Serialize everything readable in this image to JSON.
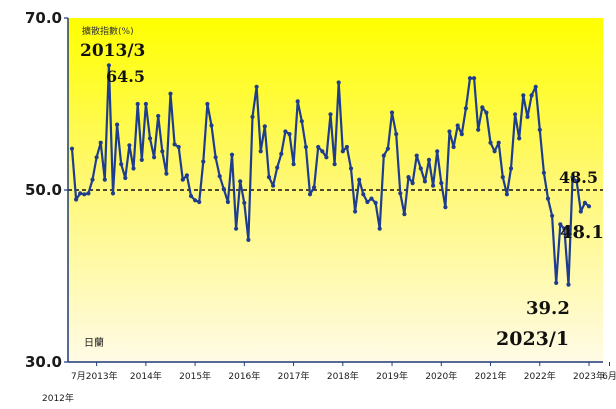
{
  "chart_data": {
    "type": "line",
    "title": "",
    "legend_label": "擴散指數(%)",
    "ylim": [
      30,
      70
    ],
    "yticks": [
      "70.0",
      "50.0",
      "30.0"
    ],
    "reference_line": {
      "value": 50,
      "style": "dashed"
    },
    "x_start": "2012-07",
    "xticks": [
      {
        "label": "7月2013年",
        "date": "2013-01"
      },
      {
        "label": "2014年",
        "date": "2014-01"
      },
      {
        "label": "2015年",
        "date": "2015-01"
      },
      {
        "label": "2016年",
        "date": "2016-01"
      },
      {
        "label": "2017年",
        "date": "2017-01"
      },
      {
        "label": "2018年",
        "date": "2018-01"
      },
      {
        "label": "2019年",
        "date": "2019-01"
      },
      {
        "label": "2020年",
        "date": "2020-01"
      },
      {
        "label": "2021年",
        "date": "2021-01"
      },
      {
        "label": "2022年",
        "date": "2022-01"
      },
      {
        "label": "2023年",
        "date": "2023-01"
      },
      {
        "label": "6月",
        "date": "2023-06"
      }
    ],
    "x_sublabel": "2012年",
    "corner_label": "日蘭",
    "annotations": [
      {
        "text": "2013/3",
        "date": "2013-03",
        "value": 64.5
      },
      {
        "text": "64.5",
        "date": "2013-03",
        "value": 64.5
      },
      {
        "text": "48.5",
        "date": "2023-05",
        "value": 48.5
      },
      {
        "text": "48.1",
        "date": "2023-06",
        "value": 48.1
      },
      {
        "text": "39.2",
        "date": "2023-01",
        "value": 39.2
      },
      {
        "text": "2023/1",
        "date": "2023-01",
        "value": 39.2
      }
    ],
    "series": [
      {
        "values": [
          54.8,
          48.9,
          49.6,
          49.5,
          49.6,
          51.2,
          53.8,
          55.5,
          51.2,
          64.5,
          49.6,
          57.6,
          53.0,
          51.4,
          55.2,
          52.5,
          60.0,
          53.5,
          60.0,
          56.0,
          53.8,
          58.6,
          54.5,
          51.9,
          61.2,
          55.3,
          55.0,
          51.2,
          51.7,
          49.3,
          48.8,
          48.6,
          53.3,
          60.0,
          57.5,
          53.8,
          51.6,
          50.1,
          48.6,
          54.1,
          45.5,
          51.0,
          48.5,
          44.2,
          58.5,
          62.0,
          54.5,
          57.4,
          51.5,
          50.5,
          52.6,
          54.2,
          56.8,
          56.5,
          53.0,
          60.3,
          58.0,
          55.0,
          49.5,
          50.3,
          55.0,
          54.5,
          53.8,
          58.8,
          53.0,
          62.5,
          54.5,
          55.0,
          52.5,
          47.5,
          51.2,
          49.5,
          48.6,
          49.0,
          48.5,
          45.5,
          54.0,
          54.8,
          59.0,
          56.5,
          49.6,
          47.2,
          51.5,
          50.8,
          54.0,
          52.5,
          51.0,
          53.5,
          50.5,
          54.5,
          50.8,
          48.0,
          56.8,
          55.0,
          57.5,
          56.5,
          59.5,
          63.0,
          63.0,
          57.0,
          59.6,
          59.0,
          55.5,
          54.5,
          55.5,
          51.5,
          49.5,
          52.5,
          58.8,
          56.0,
          61.0,
          58.5,
          61.0,
          62.0,
          57.0,
          52.0,
          49.0,
          47.0,
          39.2,
          46.0,
          45.5,
          39.0,
          51.5,
          51.0,
          47.5,
          48.5,
          48.1
        ]
      }
    ]
  }
}
